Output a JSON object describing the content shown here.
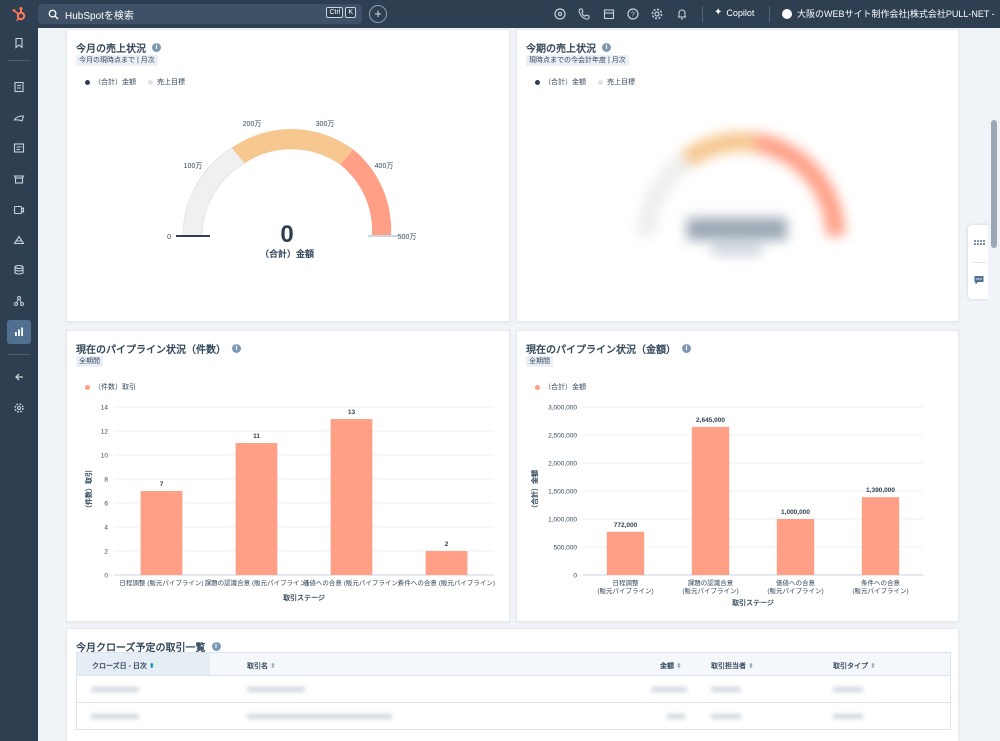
{
  "topbar": {
    "search_placeholder": "HubSpotを検索",
    "shortcut_keys": [
      "Ctrl",
      "K"
    ],
    "copilot_label": "Copilot",
    "account_label": "大阪のWEBサイト制作会社|株式会社PULL-NET -",
    "icons": [
      "help-icon",
      "phone-icon",
      "marketplace-icon",
      "question-icon",
      "settings-icon",
      "notifications-icon"
    ]
  },
  "sidebar": {
    "icons": [
      "bookmark-icon",
      "contacts-icon",
      "marketing-icon",
      "content-icon",
      "commerce-icon",
      "service-icon",
      "automation-icon",
      "data-icon",
      "reporting-icon",
      "collapse-icon",
      "settings-icon"
    ],
    "active": "reporting-icon"
  },
  "cards": {
    "monthly_sales": {
      "title": "今月の売上状況",
      "chip": "今月の現時点まで | 月次",
      "legend": [
        "（合計）金額",
        "売上目標"
      ],
      "gauge": {
        "value": "0",
        "value_label": "（合計）金額",
        "tick_labels": [
          "0",
          "100万",
          "200万",
          "300万",
          "400万",
          "500万"
        ]
      }
    },
    "term_sales": {
      "title": "今期の売上状況",
      "chip": "現時点までの今会計年度 | 月次",
      "legend": [
        "（合計）金額",
        "売上目標"
      ]
    },
    "pipeline_count": {
      "title": "現在のパイプライン状況（件数）",
      "chip": "全期間",
      "legend": "（件数）取引"
    },
    "pipeline_amount": {
      "title": "現在のパイプライン状況（金額）",
      "chip": "全期間",
      "legend": "（合計）金額"
    },
    "closing_deals": {
      "title": "今月クローズ予定の取引一覧",
      "columns": [
        "クローズ日 - 日次",
        "取引名",
        "金額",
        "取引担当者",
        "取引タイプ"
      ]
    }
  },
  "chart_data": [
    {
      "type": "bar",
      "categories": [
        "日程調整 (販元パイプライン)",
        "課題の認識合意 (販元パイプライン)",
        "価値への合意 (販元パイプライン)",
        "条件への合意 (販元パイプライン)"
      ],
      "values": [
        7,
        11,
        13,
        2
      ],
      "xlabel": "取引ステージ",
      "ylabel": "（件数）取引",
      "ylim": [
        0,
        14
      ],
      "yticks": [
        "0",
        "2",
        "4",
        "6",
        "8",
        "10",
        "12",
        "14"
      ],
      "data_labels": [
        "7",
        "11",
        "13",
        "2"
      ],
      "color": "#ff9f86"
    },
    {
      "type": "bar",
      "categories": [
        "日程調整 (販元パイプライン)",
        "課題の認識合意 (販元パイプライン)",
        "価値への合意 (販元パイプライン)",
        "条件への合意 (販元パイプライン)"
      ],
      "values": [
        772000,
        2645000,
        1000000,
        1390000
      ],
      "xlabel": "取引ステージ",
      "ylabel": "（合計）金額",
      "ylim": [
        0,
        3000000
      ],
      "yticks": [
        "0",
        "500,000",
        "1,000,000",
        "1,500,000",
        "2,000,000",
        "2,500,000",
        "3,000,000"
      ],
      "data_labels": [
        "772,000",
        "2,645,000",
        "1,000,000",
        "1,390,000"
      ],
      "color": "#ff9f86"
    }
  ]
}
